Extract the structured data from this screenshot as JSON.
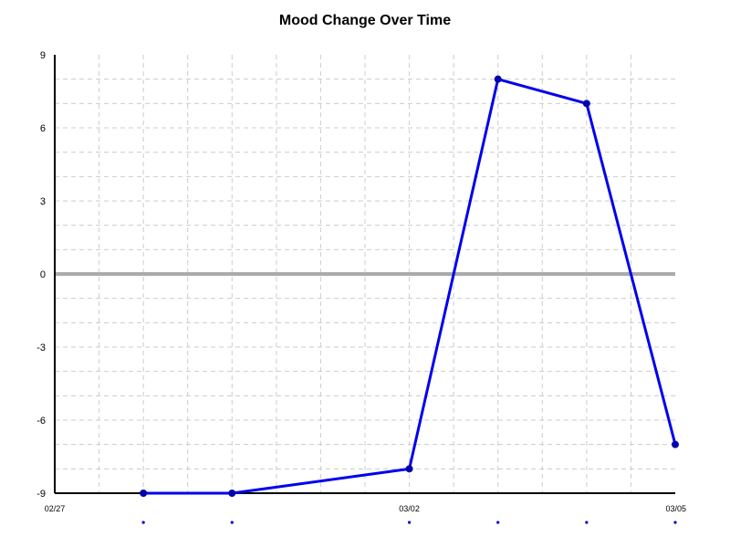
{
  "chart_data": {
    "type": "line",
    "title": "Mood Change Over Time",
    "xlabel": "",
    "ylabel": "",
    "x_range": [
      "02/27",
      "03/05"
    ],
    "ylim": [
      -9,
      9
    ],
    "y_ticks": [
      9,
      6,
      3,
      0,
      -3,
      -6,
      -9
    ],
    "x_ticks": [
      "02/27",
      "03/02",
      "03/05"
    ],
    "x": [
      "02/28",
      "02/29",
      "03/02",
      "03/03",
      "03/04",
      "03/05"
    ],
    "series": [
      {
        "values": [
          -9,
          -9,
          -8,
          8,
          7,
          -7
        ]
      }
    ],
    "grid": true,
    "zero_line": true,
    "colors": {
      "series": "#0000ee",
      "zero_line": "#aaaaaa",
      "grid": "#cccccc",
      "axis": "#000000",
      "x_markers": "#0000cc"
    }
  }
}
